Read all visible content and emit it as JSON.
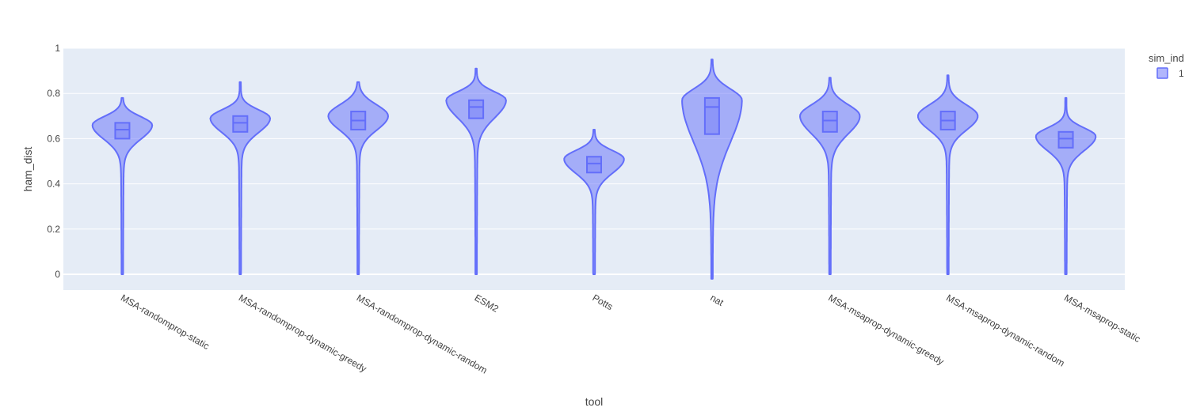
{
  "chart_data": {
    "type": "violin",
    "xlabel": "tool",
    "ylabel": "ham_dist",
    "ylim": [
      -0.07,
      1.0
    ],
    "yticks": [
      0,
      0.2,
      0.4,
      0.6,
      0.8,
      1
    ],
    "ytick_labels": [
      "0",
      "0.2",
      "0.4",
      "0.6",
      "0.8",
      "1"
    ],
    "grid": true,
    "legend": {
      "title": "sim_ind",
      "entries": [
        "1"
      ],
      "placement": "top-right"
    },
    "colors": {
      "fill": "#636efa",
      "plot_bg": "#e5ecf6",
      "grid": "#ffffff"
    },
    "categories": [
      "MSA-randomprop-static",
      "MSA-randomprop-dynamic-greedy",
      "MSA-randomprop-dynamic-random",
      "ESM2",
      "Potts",
      "nat",
      "MSA-msaprop-dynamic-greedy",
      "MSA-msaprop-dynamic-random",
      "MSA-msaprop-static"
    ],
    "series": [
      {
        "name": "1",
        "stats": [
          {
            "min": 0.0,
            "q1": 0.6,
            "median": 0.64,
            "q3": 0.67,
            "max": 0.78,
            "mode": 0.66
          },
          {
            "min": 0.0,
            "q1": 0.63,
            "median": 0.67,
            "q3": 0.7,
            "max": 0.85,
            "mode": 0.69
          },
          {
            "min": 0.0,
            "q1": 0.64,
            "median": 0.68,
            "q3": 0.72,
            "max": 0.85,
            "mode": 0.7
          },
          {
            "min": 0.0,
            "q1": 0.69,
            "median": 0.74,
            "q3": 0.77,
            "max": 0.91,
            "mode": 0.77
          },
          {
            "min": 0.0,
            "q1": 0.45,
            "median": 0.49,
            "q3": 0.52,
            "max": 0.64,
            "mode": 0.51
          },
          {
            "min": -0.02,
            "q1": 0.62,
            "median": 0.74,
            "q3": 0.78,
            "max": 0.95,
            "mode": 0.77
          },
          {
            "min": 0.0,
            "q1": 0.63,
            "median": 0.68,
            "q3": 0.72,
            "max": 0.87,
            "mode": 0.7
          },
          {
            "min": 0.0,
            "q1": 0.64,
            "median": 0.68,
            "q3": 0.72,
            "max": 0.88,
            "mode": 0.7
          },
          {
            "min": 0.0,
            "q1": 0.56,
            "median": 0.6,
            "q3": 0.63,
            "max": 0.78,
            "mode": 0.61
          }
        ]
      }
    ]
  }
}
